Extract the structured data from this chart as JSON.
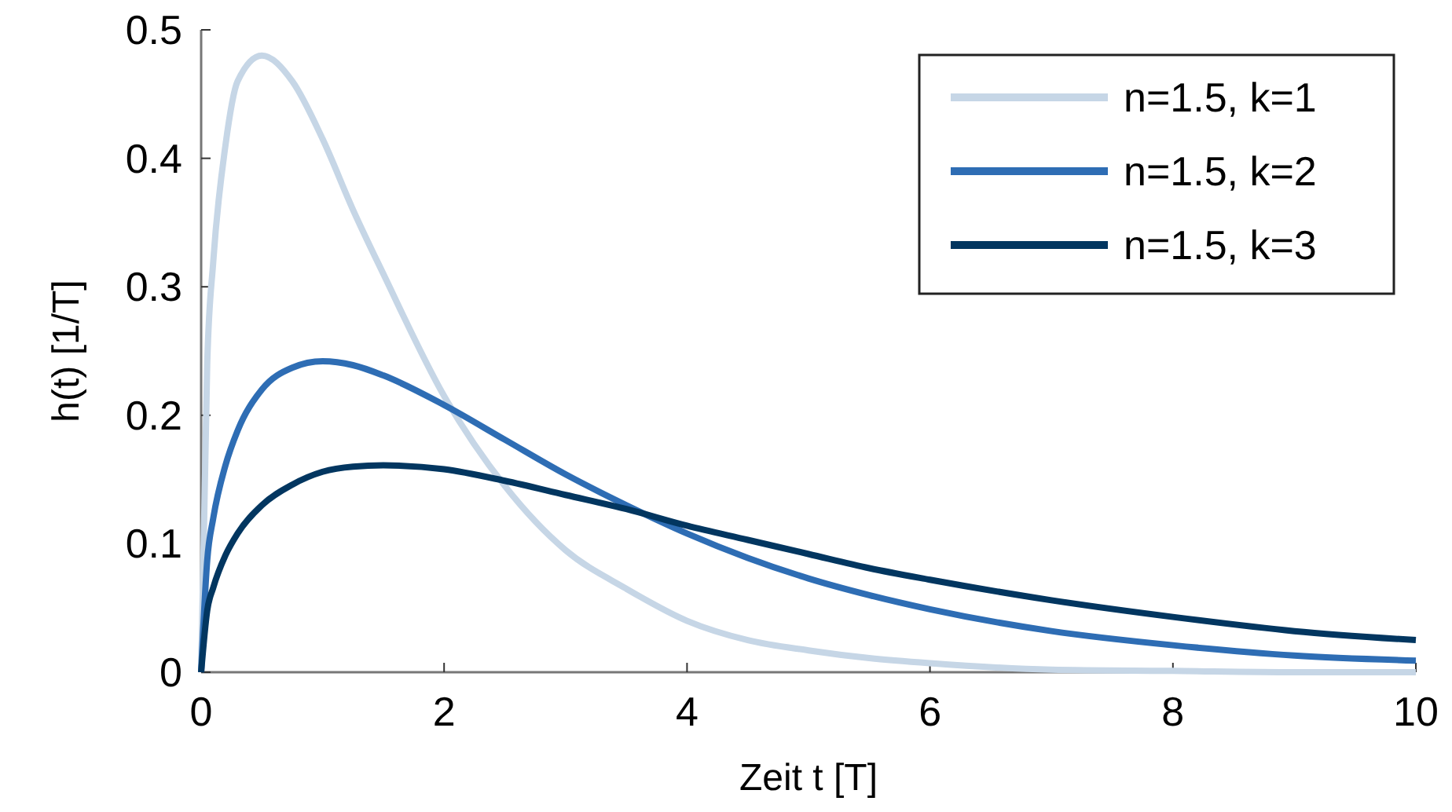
{
  "chart_data": {
    "type": "line",
    "xlabel": "Zeit t [T]",
    "ylabel": "h(t) [1/T]",
    "x": [
      0,
      0.05,
      0.1,
      0.2,
      0.3,
      0.5,
      0.75,
      1,
      1.25,
      1.5,
      2,
      2.5,
      3,
      3.5,
      4,
      4.5,
      5,
      5.5,
      6,
      7,
      8,
      9,
      10
    ],
    "series": [
      {
        "name": "n=1.5, k=1",
        "color": "#c6d6e6",
        "values": [
          0,
          0.24,
          0.32,
          0.41,
          0.46,
          0.48,
          0.46,
          0.415,
          0.36,
          0.31,
          0.215,
          0.145,
          0.095,
          0.065,
          0.04,
          0.025,
          0.017,
          0.011,
          0.007,
          0.002,
          0.001,
          0,
          0
        ]
      },
      {
        "name": "n=1.5, k=2",
        "color": "#2e6db4",
        "values": [
          0,
          0.087,
          0.12,
          0.161,
          0.188,
          0.22,
          0.237,
          0.242,
          0.239,
          0.231,
          0.208,
          0.181,
          0.154,
          0.13,
          0.108,
          0.089,
          0.073,
          0.06,
          0.049,
          0.032,
          0.021,
          0.013,
          0.009
        ]
      },
      {
        "name": "n=1.5, k=3",
        "color": "#023660",
        "values": [
          0,
          0.048,
          0.066,
          0.091,
          0.108,
          0.13,
          0.146,
          0.156,
          0.16,
          0.161,
          0.158,
          0.149,
          0.138,
          0.127,
          0.114,
          0.103,
          0.092,
          0.081,
          0.072,
          0.056,
          0.043,
          0.032,
          0.025
        ]
      }
    ],
    "xlim": [
      0,
      10
    ],
    "xticks": [
      0,
      2,
      4,
      6,
      8,
      10
    ],
    "ylim": [
      0,
      0.5
    ],
    "yticks": [
      0,
      0.1,
      0.2,
      0.3,
      0.4,
      0.5
    ],
    "grid": false,
    "legend": "top right",
    "marker": "none",
    "line_style": "solid"
  }
}
